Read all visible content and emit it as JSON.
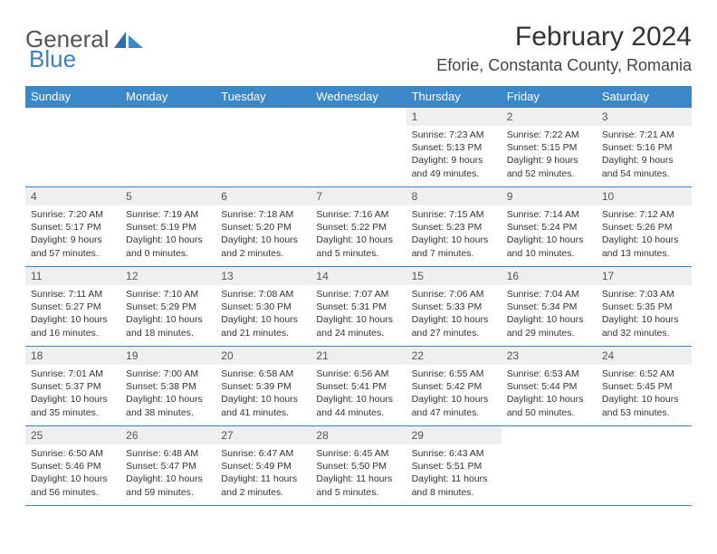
{
  "logo": {
    "word1": "General",
    "word2": "Blue"
  },
  "title": "February 2024",
  "location": "Eforie, Constanta County, Romania",
  "colors": {
    "header_bg": "#3b88c9",
    "header_text": "#ffffff",
    "border": "#3b7fc4",
    "daynum_bg": "#efefef",
    "text": "#333333",
    "logo_gray": "#555555",
    "logo_blue": "#3b7fc4"
  },
  "weekdays": [
    "Sunday",
    "Monday",
    "Tuesday",
    "Wednesday",
    "Thursday",
    "Friday",
    "Saturday"
  ],
  "weeks": [
    [
      null,
      null,
      null,
      null,
      {
        "n": "1",
        "sunrise": "7:23 AM",
        "sunset": "5:13 PM",
        "day_h": "9",
        "day_m": "49"
      },
      {
        "n": "2",
        "sunrise": "7:22 AM",
        "sunset": "5:15 PM",
        "day_h": "9",
        "day_m": "52"
      },
      {
        "n": "3",
        "sunrise": "7:21 AM",
        "sunset": "5:16 PM",
        "day_h": "9",
        "day_m": "54"
      }
    ],
    [
      {
        "n": "4",
        "sunrise": "7:20 AM",
        "sunset": "5:17 PM",
        "day_h": "9",
        "day_m": "57"
      },
      {
        "n": "5",
        "sunrise": "7:19 AM",
        "sunset": "5:19 PM",
        "day_h": "10",
        "day_m": "0"
      },
      {
        "n": "6",
        "sunrise": "7:18 AM",
        "sunset": "5:20 PM",
        "day_h": "10",
        "day_m": "2"
      },
      {
        "n": "7",
        "sunrise": "7:16 AM",
        "sunset": "5:22 PM",
        "day_h": "10",
        "day_m": "5"
      },
      {
        "n": "8",
        "sunrise": "7:15 AM",
        "sunset": "5:23 PM",
        "day_h": "10",
        "day_m": "7"
      },
      {
        "n": "9",
        "sunrise": "7:14 AM",
        "sunset": "5:24 PM",
        "day_h": "10",
        "day_m": "10"
      },
      {
        "n": "10",
        "sunrise": "7:12 AM",
        "sunset": "5:26 PM",
        "day_h": "10",
        "day_m": "13"
      }
    ],
    [
      {
        "n": "11",
        "sunrise": "7:11 AM",
        "sunset": "5:27 PM",
        "day_h": "10",
        "day_m": "16"
      },
      {
        "n": "12",
        "sunrise": "7:10 AM",
        "sunset": "5:29 PM",
        "day_h": "10",
        "day_m": "18"
      },
      {
        "n": "13",
        "sunrise": "7:08 AM",
        "sunset": "5:30 PM",
        "day_h": "10",
        "day_m": "21"
      },
      {
        "n": "14",
        "sunrise": "7:07 AM",
        "sunset": "5:31 PM",
        "day_h": "10",
        "day_m": "24"
      },
      {
        "n": "15",
        "sunrise": "7:06 AM",
        "sunset": "5:33 PM",
        "day_h": "10",
        "day_m": "27"
      },
      {
        "n": "16",
        "sunrise": "7:04 AM",
        "sunset": "5:34 PM",
        "day_h": "10",
        "day_m": "29"
      },
      {
        "n": "17",
        "sunrise": "7:03 AM",
        "sunset": "5:35 PM",
        "day_h": "10",
        "day_m": "32"
      }
    ],
    [
      {
        "n": "18",
        "sunrise": "7:01 AM",
        "sunset": "5:37 PM",
        "day_h": "10",
        "day_m": "35"
      },
      {
        "n": "19",
        "sunrise": "7:00 AM",
        "sunset": "5:38 PM",
        "day_h": "10",
        "day_m": "38"
      },
      {
        "n": "20",
        "sunrise": "6:58 AM",
        "sunset": "5:39 PM",
        "day_h": "10",
        "day_m": "41"
      },
      {
        "n": "21",
        "sunrise": "6:56 AM",
        "sunset": "5:41 PM",
        "day_h": "10",
        "day_m": "44"
      },
      {
        "n": "22",
        "sunrise": "6:55 AM",
        "sunset": "5:42 PM",
        "day_h": "10",
        "day_m": "47"
      },
      {
        "n": "23",
        "sunrise": "6:53 AM",
        "sunset": "5:44 PM",
        "day_h": "10",
        "day_m": "50"
      },
      {
        "n": "24",
        "sunrise": "6:52 AM",
        "sunset": "5:45 PM",
        "day_h": "10",
        "day_m": "53"
      }
    ],
    [
      {
        "n": "25",
        "sunrise": "6:50 AM",
        "sunset": "5:46 PM",
        "day_h": "10",
        "day_m": "56"
      },
      {
        "n": "26",
        "sunrise": "6:48 AM",
        "sunset": "5:47 PM",
        "day_h": "10",
        "day_m": "59"
      },
      {
        "n": "27",
        "sunrise": "6:47 AM",
        "sunset": "5:49 PM",
        "day_h": "11",
        "day_m": "2"
      },
      {
        "n": "28",
        "sunrise": "6:45 AM",
        "sunset": "5:50 PM",
        "day_h": "11",
        "day_m": "5"
      },
      {
        "n": "29",
        "sunrise": "6:43 AM",
        "sunset": "5:51 PM",
        "day_h": "11",
        "day_m": "8"
      },
      null,
      null
    ]
  ]
}
